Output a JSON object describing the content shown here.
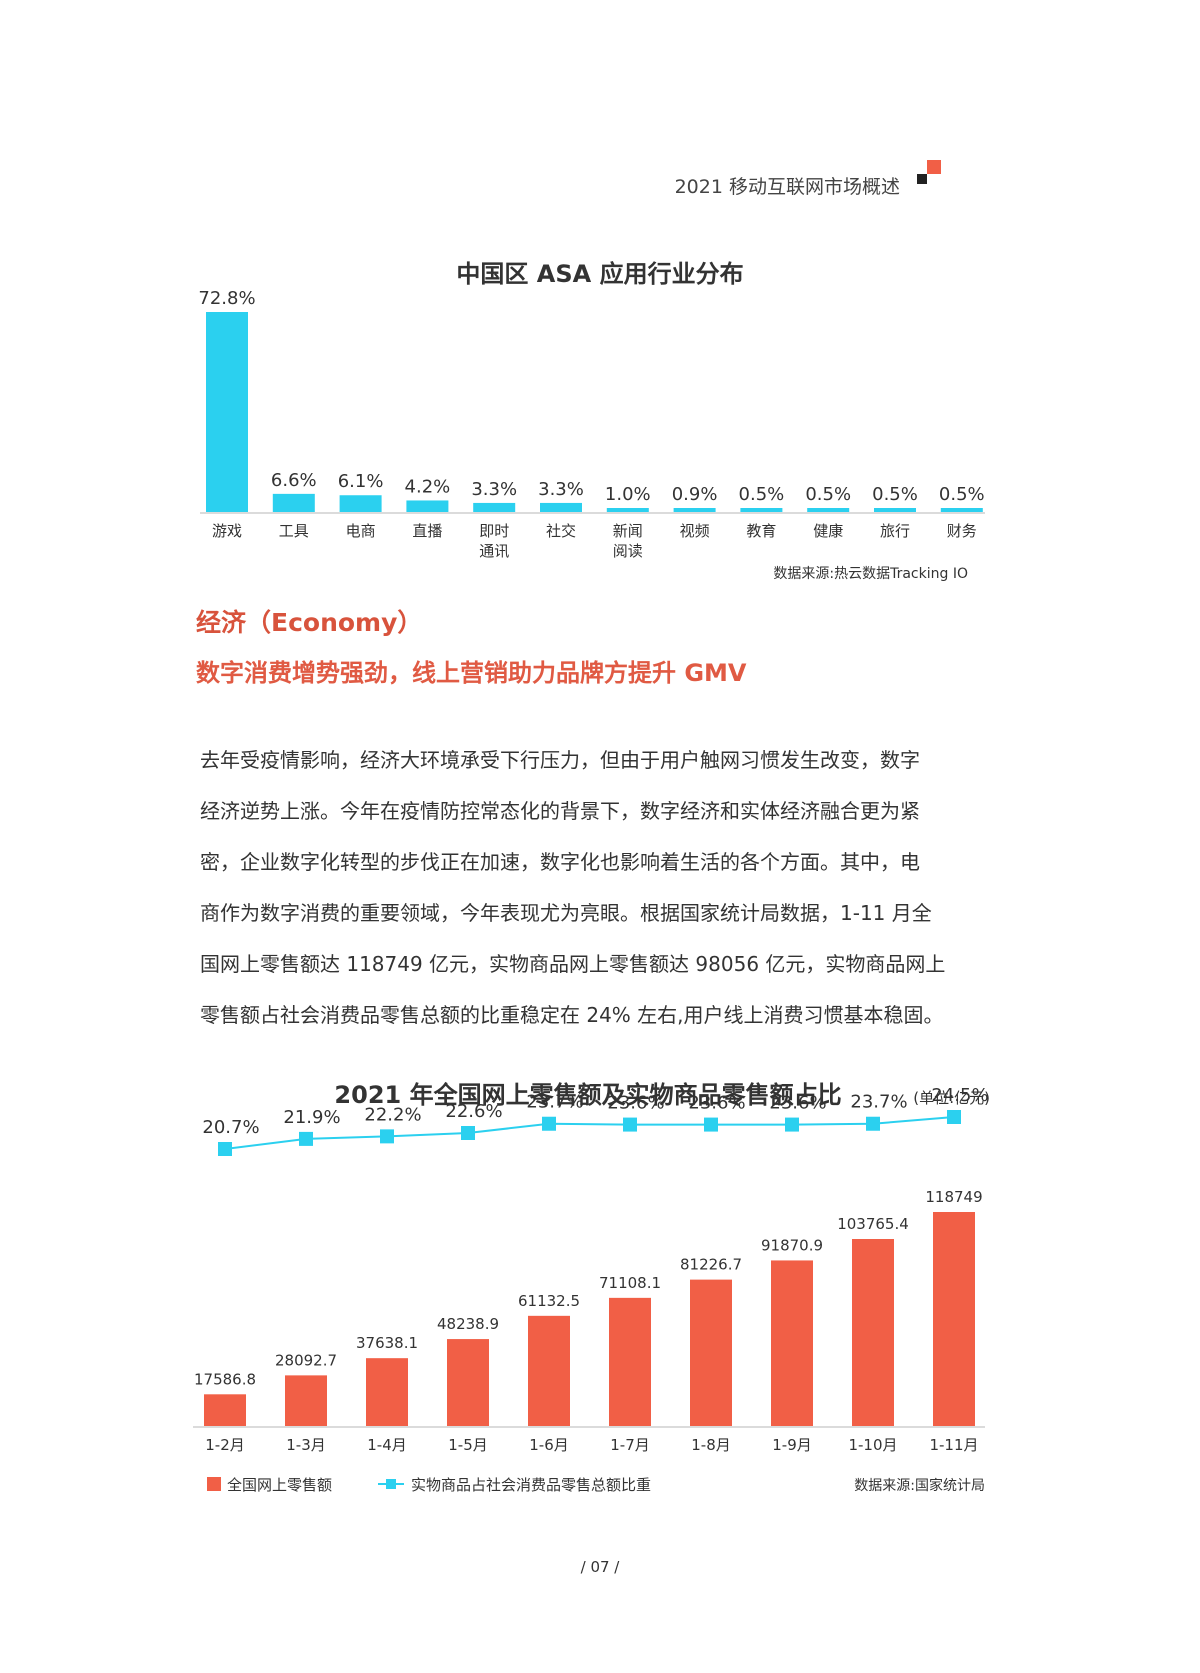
{
  "header": {
    "title": "2021 移动互联网市场概述"
  },
  "colors": {
    "cyan": "#2bd0ef",
    "orange": "#f15f46",
    "heading_red": "#d8533c"
  },
  "chart_data": [
    {
      "type": "bar",
      "title": "中国区 ASA 应用行业分布",
      "categories": [
        "游戏",
        "工具",
        "电商",
        "直播",
        "即时\n通讯",
        "社交",
        "新闻\n阅读",
        "视频",
        "教育",
        "健康",
        "旅行",
        "财务"
      ],
      "values": [
        72.8,
        6.6,
        6.1,
        4.2,
        3.3,
        3.3,
        1.0,
        0.9,
        0.5,
        0.5,
        0.5,
        0.5
      ],
      "value_labels": [
        "72.8%",
        "6.6%",
        "6.1%",
        "4.2%",
        "3.3%",
        "3.3%",
        "1.0%",
        "0.9%",
        "0.5%",
        "0.5%",
        "0.5%",
        "0.5%"
      ],
      "ylim": [
        0,
        72.8
      ],
      "color": "#2bd0ef",
      "source": "数据来源:热云数据Tracking IO"
    },
    {
      "type": "bar+line",
      "title": "2021 年全国网上零售额及实物商品零售额占比",
      "unit": "(单位:亿元)",
      "categories": [
        "1-2月",
        "1-3月",
        "1-4月",
        "1-5月",
        "1-6月",
        "1-7月",
        "1-8月",
        "1-9月",
        "1-10月",
        "1-11月"
      ],
      "series": [
        {
          "name": "全国网上零售额",
          "kind": "bar",
          "color": "#f15f46",
          "values": [
            17586.8,
            28092.7,
            37638.1,
            48238.9,
            61132.5,
            71108.1,
            81226.7,
            91870.9,
            103765.4,
            118749
          ],
          "labels": [
            "17586.8",
            "28092.7",
            "37638.1",
            "48238.9",
            "61132.5",
            "71108.1",
            "81226.7",
            "91870.9",
            "103765.4",
            "118749"
          ]
        },
        {
          "name": "实物商品占社会消费品零售总额比重",
          "kind": "line",
          "color": "#2bd0ef",
          "values": [
            20.7,
            21.9,
            22.2,
            22.6,
            23.7,
            23.6,
            23.6,
            23.6,
            23.7,
            24.5
          ],
          "labels": [
            "20.7%",
            "21.9%",
            "22.2%",
            "22.6%",
            "23.7%",
            "23.6%",
            "23.6%",
            "23.6%",
            "23.7%",
            "24.5%"
          ]
        }
      ],
      "source": "数据来源:国家统计局"
    }
  ],
  "section": {
    "title": "经济（Economy）",
    "subtitle": "数字消费增势强劲，线上营销助力品牌方提升 GMV",
    "paragraph_lines": [
      "去年受疫情影响，经济大环境承受下行压力，但由于用户触网习惯发生改变，数字",
      "经济逆势上涨。今年在疫情防控常态化的背景下，数字经济和实体经济融合更为紧",
      "密，企业数字化转型的步伐正在加速，数字化也影响着生活的各个方面。其中，电",
      "商作为数字消费的重要领域，今年表现尤为亮眼。根据国家统计局数据，1-11 月全",
      "国网上零售额达 118749 亿元，实物商品网上零售额达 98056 亿元，实物商品网上",
      "零售额占社会消费品零售总额的比重稳定在 24% 左右,用户线上消费习惯基本稳固。"
    ]
  },
  "footer": {
    "page": "/ 07 /"
  }
}
